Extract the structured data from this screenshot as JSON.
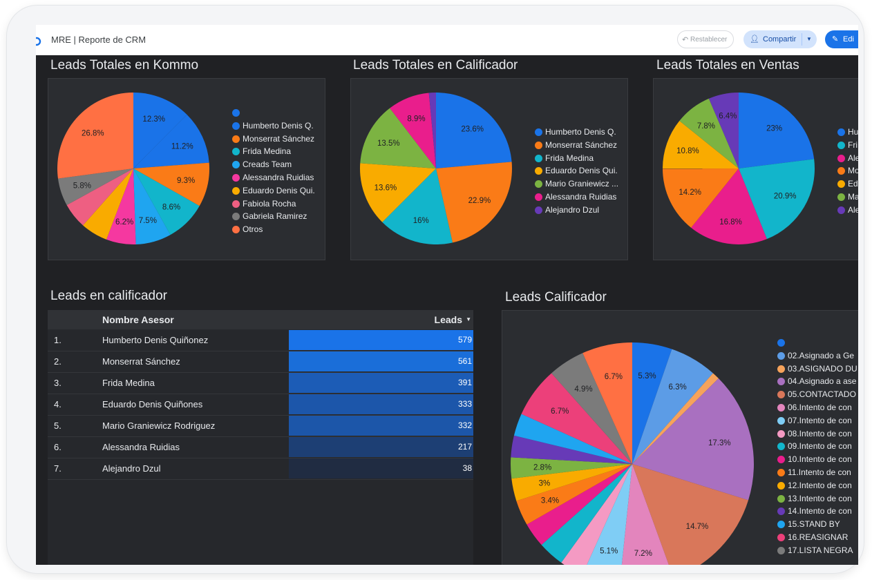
{
  "app": {
    "title": "MRE | Reporte de CRM",
    "reset_label": "Restablecer",
    "share_label": "Compartir",
    "edit_label": "Edi"
  },
  "charts": {
    "kommo": {
      "title": "Leads Totales en Kommo",
      "legend": [
        "",
        "Humberto Denis Q.",
        "Monserrat Sánchez",
        "Frida Medina",
        "Creads Team",
        "Alessandra Ruidias",
        "Eduardo Denis Qui.",
        "Fabiola Rocha",
        "Gabriela Ramirez",
        "Otros"
      ],
      "legend_colors": [
        "#1a73e8",
        "#1a73e8",
        "#fa7b17",
        "#12b5cb",
        "#1fa5f0",
        "#f538a0",
        "#f9ab00",
        "#ee5f82",
        "#7b7b7b",
        "#ff7043"
      ],
      "slices": [
        {
          "label": "12.3%",
          "value": 12.3,
          "color": "#1a73e8"
        },
        {
          "label": "11.2%",
          "value": 11.2,
          "color": "#1a73e8"
        },
        {
          "label": "9.3%",
          "value": 9.3,
          "color": "#fa7b17"
        },
        {
          "label": "8.6%",
          "value": 8.6,
          "color": "#12b5cb"
        },
        {
          "label": "7.5%",
          "value": 7.5,
          "color": "#1fa5f0"
        },
        {
          "label": "6.2%",
          "value": 6.2,
          "color": "#f538a0"
        },
        {
          "label": "",
          "value": 5.7,
          "color": "#f9ab00"
        },
        {
          "label": "",
          "value": 5.4,
          "color": "#ee5f82"
        },
        {
          "label": "5.8%",
          "value": 5.8,
          "color": "#7b7b7b"
        },
        {
          "label": "26.8%",
          "value": 26.8,
          "color": "#ff7043"
        }
      ]
    },
    "calificador": {
      "title": "Leads Totales en Calificador",
      "legend": [
        "Humberto Denis Q.",
        "Monserrat Sánchez",
        "Frida Medina",
        "Eduardo Denis Qui.",
        "Mario Graniewicz ...",
        "Alessandra Ruidias",
        "Alejandro Dzul"
      ],
      "legend_colors": [
        "#1a73e8",
        "#fa7b17",
        "#12b5cb",
        "#f9ab00",
        "#7cb342",
        "#e91e8c",
        "#673ab7"
      ],
      "slices": [
        {
          "label": "23.6%",
          "value": 23.6,
          "color": "#1a73e8"
        },
        {
          "label": "22.9%",
          "value": 22.9,
          "color": "#fa7b17"
        },
        {
          "label": "16%",
          "value": 16.0,
          "color": "#12b5cb"
        },
        {
          "label": "13.6%",
          "value": 13.6,
          "color": "#f9ab00"
        },
        {
          "label": "13.5%",
          "value": 13.5,
          "color": "#7cb342"
        },
        {
          "label": "8.9%",
          "value": 8.9,
          "color": "#e91e8c"
        },
        {
          "label": "",
          "value": 1.5,
          "color": "#673ab7"
        }
      ]
    },
    "ventas": {
      "title": "Leads Totales en Ventas",
      "legend": [
        "Hu",
        "Fri",
        "Ale",
        "Mo",
        "Ed",
        "Ma",
        "Ale"
      ],
      "legend_colors": [
        "#1a73e8",
        "#12b5cb",
        "#e91e8c",
        "#fa7b17",
        "#f9ab00",
        "#7cb342",
        "#673ab7"
      ],
      "slices": [
        {
          "label": "23%",
          "value": 23.0,
          "color": "#1a73e8"
        },
        {
          "label": "20.9%",
          "value": 20.9,
          "color": "#12b5cb"
        },
        {
          "label": "16.8%",
          "value": 16.8,
          "color": "#e91e8c"
        },
        {
          "label": "14.2%",
          "value": 14.2,
          "color": "#fa7b17"
        },
        {
          "label": "10.8%",
          "value": 10.8,
          "color": "#f9ab00"
        },
        {
          "label": "7.8%",
          "value": 7.8,
          "color": "#7cb342"
        },
        {
          "label": "6.4%",
          "value": 6.4,
          "color": "#673ab7"
        }
      ]
    },
    "leads_calificador": {
      "title": "Leads Calificador",
      "legend": [
        "",
        "02.Asignado a Ge",
        "03.ASIGNADO DU",
        "04.Asignado a ase",
        "05.CONTACTADO",
        "06.Intento de con",
        "07.Intento de con",
        "08.Intento de con",
        "09.Intento de con",
        "10.Intento de con",
        "11.Intento de con",
        "12.Intento de con",
        "13.Intento de con",
        "14.Intento de con",
        "15.STAND BY",
        "16.REASIGNAR",
        "17.LISTA NEGRA"
      ],
      "legend_colors": [
        "#1a73e8",
        "#5c9ce6",
        "#f6a35b",
        "#a970c0",
        "#d9775a",
        "#e385bd",
        "#7fcdf5",
        "#f49ac3",
        "#12b5cb",
        "#e91e8c",
        "#fa7b17",
        "#f9ab00",
        "#7cb342",
        "#673ab7",
        "#1fa5f0",
        "#ec407a",
        "#7b7b7b"
      ],
      "slices": [
        {
          "label": "5.3%",
          "value": 5.3,
          "color": "#1a73e8"
        },
        {
          "label": "6.3%",
          "value": 6.3,
          "color": "#5c9ce6"
        },
        {
          "label": "",
          "value": 1.0,
          "color": "#f6a35b"
        },
        {
          "label": "17.3%",
          "value": 17.3,
          "color": "#a970c0"
        },
        {
          "label": "14.7%",
          "value": 14.7,
          "color": "#d9775a"
        },
        {
          "label": "7.2%",
          "value": 7.2,
          "color": "#e385bd"
        },
        {
          "label": "5.1%",
          "value": 5.1,
          "color": "#7fcdf5"
        },
        {
          "label": "",
          "value": 3.2,
          "color": "#f49ac3"
        },
        {
          "label": "",
          "value": 3.5,
          "color": "#12b5cb"
        },
        {
          "label": "",
          "value": 3.3,
          "color": "#e91e8c"
        },
        {
          "label": "3.4%",
          "value": 3.4,
          "color": "#fa7b17"
        },
        {
          "label": "3%",
          "value": 3.0,
          "color": "#f9ab00"
        },
        {
          "label": "2.8%",
          "value": 2.8,
          "color": "#7cb342"
        },
        {
          "label": "",
          "value": 2.9,
          "color": "#673ab7"
        },
        {
          "label": "",
          "value": 3.0,
          "color": "#1fa5f0"
        },
        {
          "label": "6.7%",
          "value": 6.7,
          "color": "#ec407a"
        },
        {
          "label": "4.9%",
          "value": 4.9,
          "color": "#7b7b7b"
        },
        {
          "label": "6.7%",
          "value": 6.7,
          "color": "#ff7043"
        }
      ]
    }
  },
  "table": {
    "title": "Leads en calificador",
    "col_name": "Nombre Asesor",
    "col_leads": "Leads",
    "max_value": 579,
    "rows": [
      {
        "num": "1.",
        "name": "Humberto Denis Quiñonez",
        "value": "579",
        "amount": 579,
        "color": "#1a73e8"
      },
      {
        "num": "2.",
        "name": "Monserrat Sánchez",
        "value": "561",
        "amount": 561,
        "color": "#1a6ed9"
      },
      {
        "num": "3.",
        "name": "Frida Medina",
        "value": "391",
        "amount": 391,
        "color": "#1c5cb6"
      },
      {
        "num": "4.",
        "name": "Eduardo Denis Quiñones",
        "value": "333",
        "amount": 333,
        "color": "#1c56aa"
      },
      {
        "num": "5.",
        "name": "Mario Graniewicz Rodriguez",
        "value": "332",
        "amount": 332,
        "color": "#1c56a9"
      },
      {
        "num": "6.",
        "name": "Alessandra Ruidias",
        "value": "217",
        "amount": 217,
        "color": "#1d3f74"
      },
      {
        "num": "7.",
        "name": "Alejandro Dzul",
        "value": "38",
        "amount": 38,
        "color": "#202c42"
      }
    ]
  }
}
